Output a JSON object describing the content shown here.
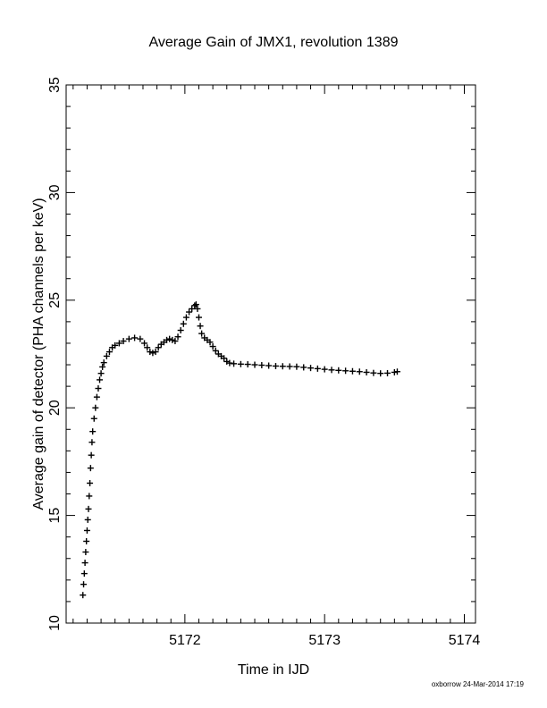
{
  "chart_data": {
    "type": "scatter",
    "title": "Average Gain of JMX1, revolution 1389",
    "xlabel": "Time in IJD",
    "ylabel": "Average gain of detector (PHA channels per keV)",
    "xlim": [
      5171.15,
      5174.08
    ],
    "ylim": [
      10,
      35
    ],
    "xticks": [
      5172,
      5173,
      5174
    ],
    "yticks": [
      10,
      15,
      20,
      25,
      30,
      35
    ],
    "marker": "plus",
    "series": [
      {
        "points": [
          [
            5171.27,
            11.3
          ],
          [
            5171.275,
            11.8
          ],
          [
            5171.28,
            12.3
          ],
          [
            5171.285,
            12.8
          ],
          [
            5171.29,
            13.3
          ],
          [
            5171.295,
            13.8
          ],
          [
            5171.3,
            14.3
          ],
          [
            5171.305,
            14.8
          ],
          [
            5171.31,
            15.3
          ],
          [
            5171.315,
            15.9
          ],
          [
            5171.32,
            16.5
          ],
          [
            5171.325,
            17.2
          ],
          [
            5171.33,
            17.8
          ],
          [
            5171.335,
            18.4
          ],
          [
            5171.34,
            18.9
          ],
          [
            5171.35,
            19.5
          ],
          [
            5171.36,
            20.0
          ],
          [
            5171.37,
            20.5
          ],
          [
            5171.38,
            20.9
          ],
          [
            5171.39,
            21.3
          ],
          [
            5171.4,
            21.6
          ],
          [
            5171.41,
            21.9
          ],
          [
            5171.42,
            22.1
          ],
          [
            5171.44,
            22.4
          ],
          [
            5171.46,
            22.6
          ],
          [
            5171.48,
            22.8
          ],
          [
            5171.5,
            22.9
          ],
          [
            5171.53,
            23.0
          ],
          [
            5171.56,
            23.1
          ],
          [
            5171.6,
            23.2
          ],
          [
            5171.64,
            23.25
          ],
          [
            5171.68,
            23.2
          ],
          [
            5171.71,
            23.0
          ],
          [
            5171.73,
            22.8
          ],
          [
            5171.75,
            22.6
          ],
          [
            5171.77,
            22.55
          ],
          [
            5171.79,
            22.6
          ],
          [
            5171.81,
            22.8
          ],
          [
            5171.83,
            22.95
          ],
          [
            5171.85,
            23.05
          ],
          [
            5171.87,
            23.15
          ],
          [
            5171.89,
            23.2
          ],
          [
            5171.91,
            23.15
          ],
          [
            5171.93,
            23.1
          ],
          [
            5171.95,
            23.3
          ],
          [
            5171.97,
            23.6
          ],
          [
            5171.99,
            23.9
          ],
          [
            5172.01,
            24.2
          ],
          [
            5172.03,
            24.45
          ],
          [
            5172.05,
            24.6
          ],
          [
            5172.07,
            24.75
          ],
          [
            5172.08,
            24.8
          ],
          [
            5172.09,
            24.6
          ],
          [
            5172.1,
            24.2
          ],
          [
            5172.11,
            23.8
          ],
          [
            5172.12,
            23.45
          ],
          [
            5172.14,
            23.25
          ],
          [
            5172.16,
            23.15
          ],
          [
            5172.18,
            23.05
          ],
          [
            5172.2,
            22.85
          ],
          [
            5172.22,
            22.65
          ],
          [
            5172.24,
            22.5
          ],
          [
            5172.26,
            22.4
          ],
          [
            5172.28,
            22.3
          ],
          [
            5172.3,
            22.15
          ],
          [
            5172.32,
            22.08
          ],
          [
            5172.35,
            22.05
          ],
          [
            5172.4,
            22.03
          ],
          [
            5172.45,
            22.02
          ],
          [
            5172.5,
            22.0
          ],
          [
            5172.55,
            21.98
          ],
          [
            5172.6,
            21.96
          ],
          [
            5172.65,
            21.94
          ],
          [
            5172.7,
            21.93
          ],
          [
            5172.75,
            21.92
          ],
          [
            5172.8,
            21.91
          ],
          [
            5172.85,
            21.88
          ],
          [
            5172.9,
            21.85
          ],
          [
            5172.95,
            21.82
          ],
          [
            5173.0,
            21.79
          ],
          [
            5173.05,
            21.76
          ],
          [
            5173.1,
            21.74
          ],
          [
            5173.15,
            21.72
          ],
          [
            5173.2,
            21.7
          ],
          [
            5173.25,
            21.68
          ],
          [
            5173.3,
            21.65
          ],
          [
            5173.35,
            21.62
          ],
          [
            5173.4,
            21.6
          ],
          [
            5173.45,
            21.61
          ],
          [
            5173.5,
            21.65
          ],
          [
            5173.52,
            21.68
          ]
        ]
      }
    ]
  },
  "footer": {
    "stamp": "oxborrow 24-Mar-2014 17:19"
  }
}
